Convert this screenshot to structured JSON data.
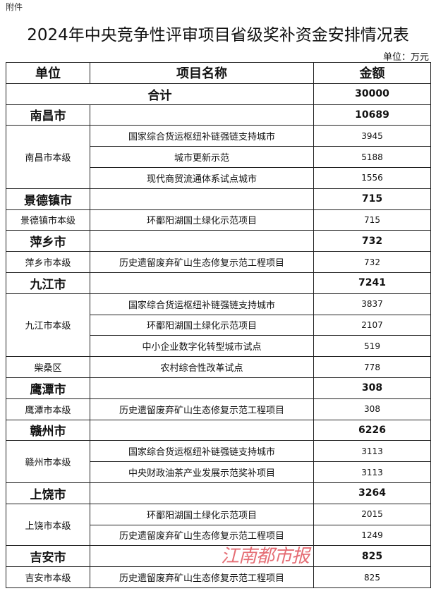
{
  "attachment": "附件",
  "title": "2024年中央竞争性评审项目省级奖补资金安排情况表",
  "unit": "单位：万元",
  "headers": {
    "unit": "单位",
    "project": "项目名称",
    "amount": "金额"
  },
  "total": {
    "label": "合计",
    "amount": "30000"
  },
  "groups": [
    {
      "city": "南昌市",
      "amount": "10689",
      "subs": [
        {
          "unit": "南昌市本级",
          "items": [
            {
              "name": "国家综合货运枢纽补链强链支持城市",
              "amount": "3945"
            },
            {
              "name": "城市更新示范",
              "amount": "5188"
            },
            {
              "name": "现代商贸流通体系试点城市",
              "amount": "1556"
            }
          ]
        }
      ]
    },
    {
      "city": "景德镇市",
      "amount": "715",
      "subs": [
        {
          "unit": "景德镇市本级",
          "items": [
            {
              "name": "环鄱阳湖国土绿化示范项目",
              "amount": "715"
            }
          ]
        }
      ]
    },
    {
      "city": "萍乡市",
      "amount": "732",
      "subs": [
        {
          "unit": "萍乡市本级",
          "items": [
            {
              "name": "历史遗留废弃矿山生态修复示范工程项目",
              "amount": "732"
            }
          ]
        }
      ]
    },
    {
      "city": "九江市",
      "amount": "7241",
      "subs": [
        {
          "unit": "九江市本级",
          "items": [
            {
              "name": "国家综合货运枢纽补链强链支持城市",
              "amount": "3837"
            },
            {
              "name": "环鄱阳湖国土绿化示范项目",
              "amount": "2107"
            },
            {
              "name": "中小企业数字化转型城市试点",
              "amount": "519"
            }
          ]
        },
        {
          "unit": "柴桑区",
          "items": [
            {
              "name": "农村综合性改革试点",
              "amount": "778"
            }
          ]
        }
      ]
    },
    {
      "city": "鹰潭市",
      "amount": "308",
      "subs": [
        {
          "unit": "鹰潭市本级",
          "items": [
            {
              "name": "历史遗留废弃矿山生态修复示范工程项目",
              "amount": "308"
            }
          ]
        }
      ]
    },
    {
      "city": "赣州市",
      "amount": "6226",
      "subs": [
        {
          "unit": "赣州市本级",
          "items": [
            {
              "name": "国家综合货运枢纽补链强链支持城市",
              "amount": "3113"
            },
            {
              "name": "中央财政油茶产业发展示范奖补项目",
              "amount": "3113"
            }
          ]
        }
      ]
    },
    {
      "city": "上饶市",
      "amount": "3264",
      "subs": [
        {
          "unit": "上饶市本级",
          "items": [
            {
              "name": "环鄱阳湖国土绿化示范项目",
              "amount": "2015"
            },
            {
              "name": "历史遗留废弃矿山生态修复示范工程项目",
              "amount": "1249"
            }
          ]
        }
      ]
    },
    {
      "city": "吉安市",
      "amount": "825",
      "subs": [
        {
          "unit": "吉安市本级",
          "items": [
            {
              "name": "历史遗留废弃矿山生态修复示范工程项目",
              "amount": "825"
            }
          ]
        }
      ]
    }
  ],
  "watermark": "江南都市报",
  "colors": {
    "watermark": "#dc3c46",
    "border": "#222222"
  }
}
